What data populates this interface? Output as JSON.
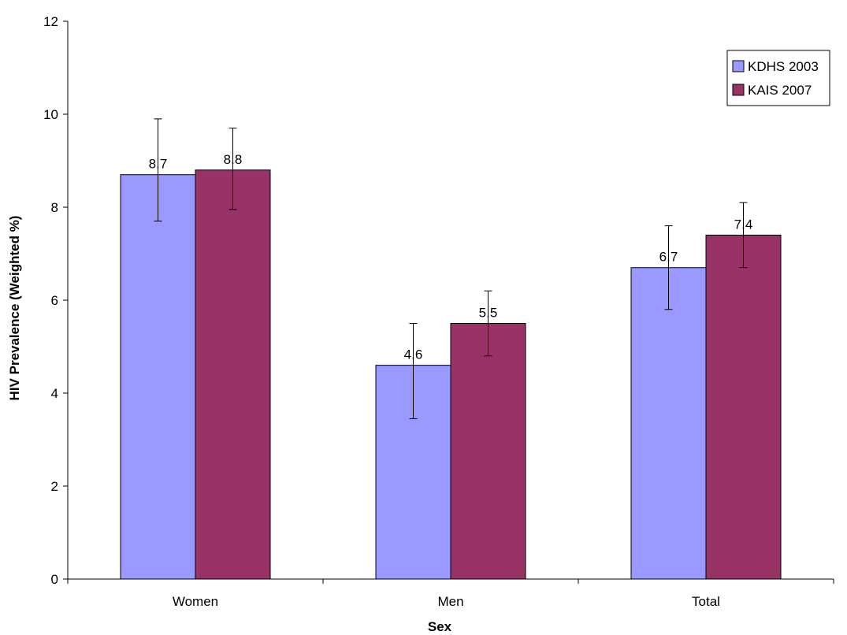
{
  "chart_data": {
    "type": "bar",
    "title": "",
    "xlabel": "Sex",
    "ylabel": "HIV Prevalence (Weighted %)",
    "categories": [
      "Women",
      "Men",
      "Total"
    ],
    "ylim": [
      0,
      12
    ],
    "yticks": [
      0,
      2,
      4,
      6,
      8,
      10,
      12
    ],
    "grid": false,
    "legend_position": "top-right",
    "series": [
      {
        "name": "KDHS 2003",
        "color": "#9999FF",
        "values": [
          8.7,
          4.6,
          6.7
        ],
        "labels": [
          "8.7",
          "4.6",
          "6.7"
        ],
        "error_low": [
          7.7,
          3.45,
          5.8
        ],
        "error_high": [
          9.9,
          5.5,
          7.6
        ]
      },
      {
        "name": "KAIS 2007",
        "color": "#993366",
        "values": [
          8.8,
          5.5,
          7.4
        ],
        "labels": [
          "8.8",
          "5.5",
          "7.4"
        ],
        "error_low": [
          7.95,
          4.8,
          6.7
        ],
        "error_high": [
          9.7,
          6.2,
          8.1
        ]
      }
    ]
  }
}
